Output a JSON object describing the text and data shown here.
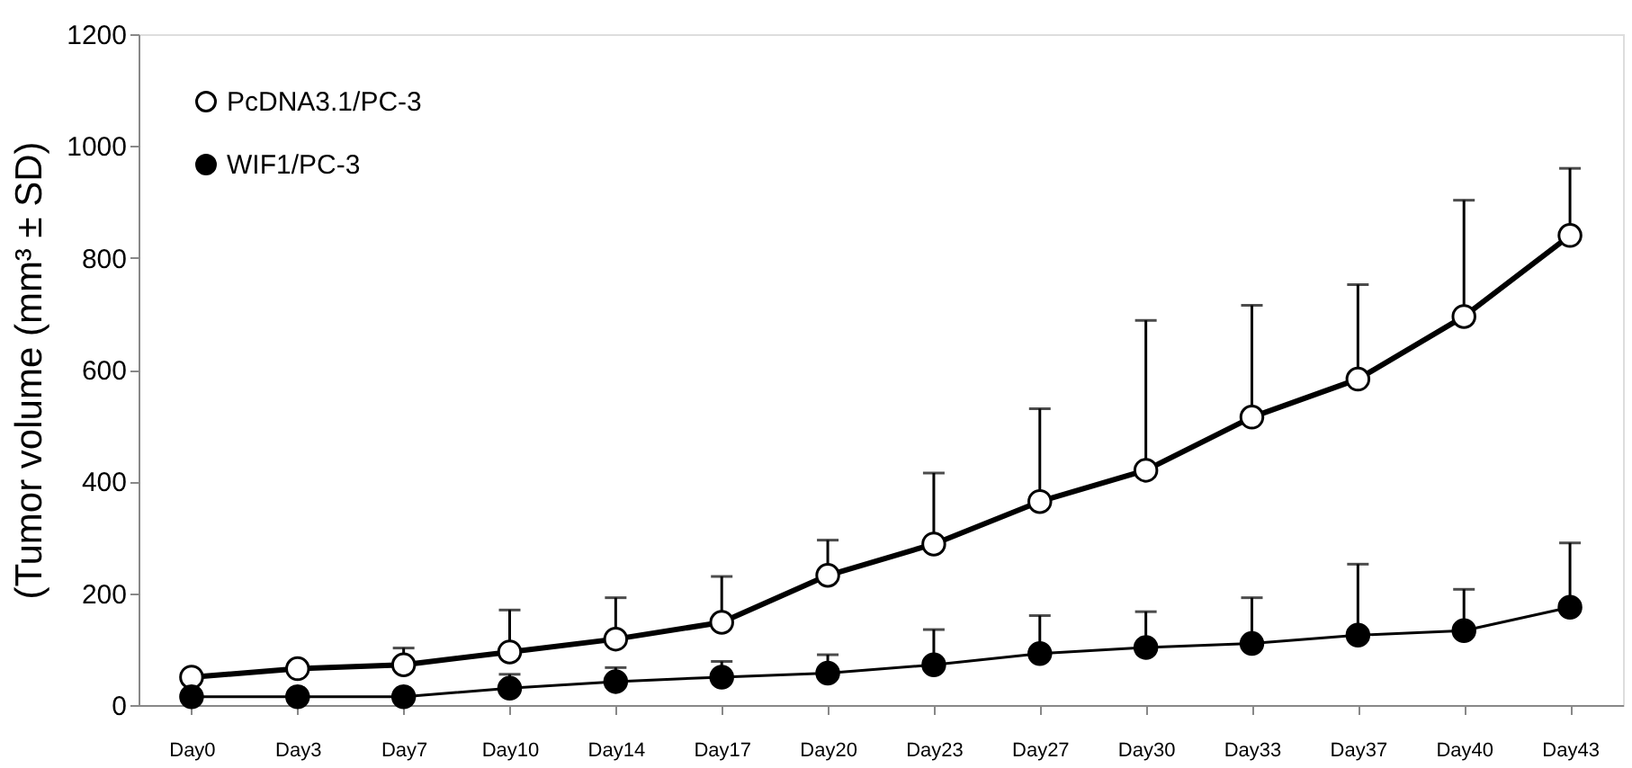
{
  "chart_data": {
    "type": "line",
    "ylabel": "(Tumor volume (mm³ ± SD)",
    "categories": [
      "Day0",
      "Day3",
      "Day7",
      "Day10",
      "Day14",
      "Day17",
      "Day20",
      "Day23",
      "Day27",
      "Day30",
      "Day33",
      "Day37",
      "Day40",
      "Day43"
    ],
    "series": [
      {
        "name": "PcDNA3.1/PC-3",
        "color": "#000000",
        "values": [
          50,
          65,
          72,
          95,
          118,
          148,
          232,
          288,
          364,
          420,
          515,
          583,
          695,
          840
        ],
        "errors": [
          null,
          null,
          [
            72,
            102
          ],
          [
            95,
            170
          ],
          [
            118,
            192
          ],
          [
            148,
            230
          ],
          [
            232,
            295
          ],
          [
            288,
            415
          ],
          [
            364,
            530
          ],
          [
            420,
            688
          ],
          [
            515,
            715
          ],
          [
            583,
            752
          ],
          [
            695,
            903
          ],
          [
            840,
            960
          ]
        ]
      },
      {
        "name": "WIF1/PC-3",
        "color": "#000000",
        "values": [
          15,
          15,
          15,
          30,
          42,
          50,
          57,
          72,
          92,
          103,
          110,
          125,
          133,
          175
        ],
        "errors": [
          null,
          null,
          null,
          [
            30,
            55
          ],
          [
            42,
            67
          ],
          [
            50,
            78
          ],
          [
            57,
            90
          ],
          [
            72,
            135
          ],
          [
            92,
            160
          ],
          [
            103,
            167
          ],
          [
            110,
            192
          ],
          [
            125,
            252
          ],
          [
            133,
            207
          ],
          [
            175,
            290
          ]
        ]
      }
    ],
    "ylim": [
      0,
      1200
    ],
    "yticks": [
      0,
      200,
      400,
      600,
      800,
      1000,
      1200
    ],
    "grid": false,
    "legend": "top left",
    "marker": "circle",
    "line_style": "solid"
  }
}
